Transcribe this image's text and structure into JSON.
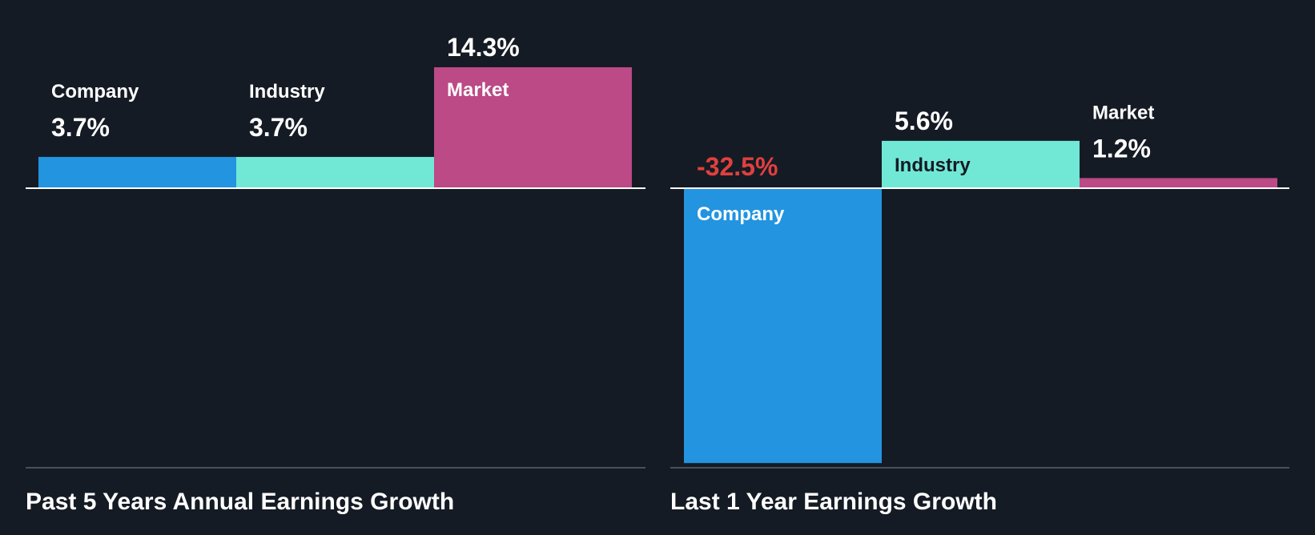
{
  "colors": {
    "background": "#151b24",
    "company": "#2394e0",
    "industry": "#71e8d6",
    "market": "#bb4a87",
    "text_light": "#ffffff",
    "text_dark": "#151b24",
    "negative": "#e0403f",
    "baseline": "#ffffff",
    "bottom_rule": "#4a4f58"
  },
  "chart_data": [
    {
      "type": "bar",
      "title": "Past 5 Years Annual Earnings Growth",
      "categories": [
        "Company",
        "Industry",
        "Market"
      ],
      "values": [
        3.7,
        3.7,
        14.3
      ],
      "value_labels": [
        "3.7%",
        "3.7%",
        "14.3%"
      ],
      "ylim": [
        -32.5,
        14.3
      ],
      "xlabel": "",
      "ylabel": "",
      "grid": false,
      "legend": "none"
    },
    {
      "type": "bar",
      "title": "Last 1 Year Earnings Growth",
      "categories": [
        "Company",
        "Industry",
        "Market"
      ],
      "values": [
        -32.5,
        5.6,
        1.2
      ],
      "value_labels": [
        "-32.5%",
        "5.6%",
        "1.2%"
      ],
      "ylim": [
        -32.5,
        14.3
      ],
      "xlabel": "",
      "ylabel": "",
      "grid": false,
      "legend": "none"
    }
  ]
}
